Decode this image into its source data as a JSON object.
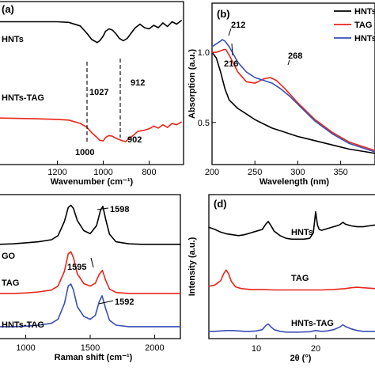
{
  "chart_data": [
    {
      "panel": "a",
      "type": "line",
      "panel_label": "(a)",
      "xlabel": "Wavenumber (cm⁻¹)",
      "xlim": [
        1450,
        650
      ],
      "xticks": [
        1200,
        1000,
        800
      ],
      "series": [
        {
          "name": "HNTs",
          "color": "#000000",
          "x": [
            1450,
            1300,
            1200,
            1150,
            1100,
            1070,
            1050,
            1035,
            1027,
            1015,
            1000,
            990,
            975,
            960,
            945,
            930,
            912,
            895,
            880,
            860,
            840,
            820,
            800,
            780,
            760,
            740,
            720,
            700,
            680,
            660
          ],
          "y": [
            0.9,
            0.9,
            0.9,
            0.89,
            0.83,
            0.7,
            0.6,
            0.57,
            0.55,
            0.58,
            0.66,
            0.74,
            0.78,
            0.76,
            0.7,
            0.62,
            0.58,
            0.62,
            0.7,
            0.8,
            0.86,
            0.8,
            0.78,
            0.84,
            0.8,
            0.88,
            0.82,
            0.9,
            0.86,
            0.92
          ]
        },
        {
          "name": "HNTs-TAG",
          "color": "#e8261c",
          "x": [
            1450,
            1300,
            1200,
            1150,
            1100,
            1070,
            1050,
            1030,
            1015,
            1000,
            990,
            975,
            960,
            945,
            930,
            915,
            902,
            890,
            870,
            850,
            820,
            800,
            780,
            760,
            740,
            720,
            700,
            680,
            660
          ],
          "y": [
            0.48,
            0.47,
            0.46,
            0.45,
            0.4,
            0.34,
            0.26,
            0.2,
            0.15,
            0.14,
            0.19,
            0.22,
            0.21,
            0.18,
            0.16,
            0.14,
            0.13,
            0.17,
            0.22,
            0.28,
            0.3,
            0.32,
            0.36,
            0.33,
            0.38,
            0.34,
            0.4,
            0.38,
            0.42
          ]
        }
      ],
      "annotations": [
        "HNTs",
        "HNTs-TAG",
        "1027",
        "912",
        "1000",
        "902"
      ]
    },
    {
      "panel": "b",
      "type": "line",
      "panel_label": "(b)",
      "xlabel": "Wavelength (nm)",
      "ylabel": "Absorption (a.u.)",
      "xlim": [
        200,
        390
      ],
      "ylim": [
        0.2,
        1.35
      ],
      "xticks": [
        200,
        250,
        300,
        350
      ],
      "yticks": [
        0.5,
        1.0
      ],
      "legend_position": "top-right",
      "series": [
        {
          "name": "HNTs",
          "color": "#000000",
          "x": [
            200,
            205,
            210,
            215,
            220,
            230,
            240,
            250,
            260,
            270,
            280,
            290,
            300,
            320,
            340,
            360,
            380,
            390
          ],
          "y": [
            1.0,
            0.96,
            0.86,
            0.74,
            0.66,
            0.6,
            0.56,
            0.52,
            0.49,
            0.46,
            0.44,
            0.42,
            0.4,
            0.37,
            0.34,
            0.31,
            0.29,
            0.28
          ]
        },
        {
          "name": "TAG",
          "color": "#e8261c",
          "x": [
            200,
            205,
            210,
            214,
            216,
            220,
            230,
            240,
            250,
            260,
            268,
            275,
            285,
            300,
            320,
            340,
            360,
            380,
            390
          ],
          "y": [
            1.0,
            1.0,
            1.01,
            1.02,
            1.02,
            0.98,
            0.86,
            0.79,
            0.78,
            0.81,
            0.82,
            0.8,
            0.74,
            0.64,
            0.52,
            0.43,
            0.36,
            0.32,
            0.3
          ]
        },
        {
          "name": "HNTs-TAG",
          "color": "#3a4fb5",
          "x": [
            200,
            205,
            210,
            212,
            215,
            220,
            230,
            240,
            250,
            260,
            270,
            280,
            290,
            300,
            320,
            340,
            360,
            380,
            390
          ],
          "y": [
            1.04,
            1.06,
            1.08,
            1.09,
            1.08,
            1.04,
            0.93,
            0.86,
            0.82,
            0.8,
            0.78,
            0.74,
            0.69,
            0.63,
            0.51,
            0.42,
            0.35,
            0.31,
            0.29
          ]
        }
      ],
      "annotations": [
        "212",
        "216",
        "268"
      ]
    },
    {
      "panel": "c",
      "type": "line",
      "xlabel": "Raman shift (cm⁻¹)",
      "xlim": [
        800,
        2200
      ],
      "xticks": [
        1000,
        1500,
        2000
      ],
      "series": [
        {
          "name": "GO",
          "color": "#000000",
          "x": [
            800,
            900,
            1000,
            1100,
            1200,
            1250,
            1300,
            1330,
            1350,
            1370,
            1400,
            1450,
            1500,
            1550,
            1580,
            1598,
            1620,
            1650,
            1700,
            1800,
            1900,
            2000,
            2100,
            2200
          ],
          "y": [
            0.05,
            0.06,
            0.08,
            0.1,
            0.14,
            0.22,
            0.5,
            0.78,
            0.82,
            0.76,
            0.52,
            0.32,
            0.26,
            0.42,
            0.72,
            0.8,
            0.55,
            0.25,
            0.1,
            0.06,
            0.05,
            0.05,
            0.05,
            0.05
          ]
        },
        {
          "name": "TAG",
          "color": "#e8261c",
          "x": [
            800,
            900,
            1000,
            1100,
            1200,
            1250,
            1300,
            1330,
            1350,
            1370,
            1400,
            1450,
            1500,
            1540,
            1570,
            1595,
            1620,
            1650,
            1700,
            1800,
            1900,
            2000,
            2100,
            2200
          ],
          "y": [
            0.05,
            0.05,
            0.06,
            0.08,
            0.12,
            0.2,
            0.5,
            0.86,
            0.9,
            0.78,
            0.45,
            0.25,
            0.2,
            0.26,
            0.44,
            0.52,
            0.32,
            0.14,
            0.07,
            0.05,
            0.05,
            0.05,
            0.05,
            0.05
          ]
        },
        {
          "name": "HNTs-TAG",
          "color": "#3a4fb5",
          "x": [
            800,
            900,
            1000,
            1100,
            1200,
            1250,
            1300,
            1330,
            1350,
            1370,
            1400,
            1450,
            1500,
            1540,
            1570,
            1592,
            1620,
            1650,
            1700,
            1800,
            1900,
            2000,
            2100,
            2200
          ],
          "y": [
            0.05,
            0.05,
            0.06,
            0.08,
            0.12,
            0.2,
            0.52,
            0.88,
            0.92,
            0.8,
            0.46,
            0.26,
            0.2,
            0.28,
            0.56,
            0.68,
            0.42,
            0.18,
            0.08,
            0.05,
            0.05,
            0.05,
            0.05,
            0.05
          ]
        }
      ],
      "annotations": [
        "GO",
        "TAG",
        "HNTs-TAG",
        "1598",
        "1595",
        "1592"
      ]
    },
    {
      "panel": "d",
      "type": "line",
      "panel_label": "(d)",
      "xlabel": "2θ (°)",
      "ylabel": "Intensity (a.u.)",
      "xlim": [
        2,
        30
      ],
      "xticks": [
        10,
        20
      ],
      "series": [
        {
          "name": "HNTs",
          "color": "#000000",
          "x": [
            2,
            3,
            4,
            5,
            6,
            7,
            8,
            9,
            10,
            11,
            11.6,
            12,
            12.4,
            13,
            14,
            15,
            16,
            17,
            18,
            19,
            19.6,
            20,
            20.3,
            20.6,
            21,
            22,
            23,
            24,
            24.6,
            25,
            26,
            27,
            28,
            29,
            30
          ],
          "y": [
            0.55,
            0.5,
            0.44,
            0.4,
            0.38,
            0.36,
            0.38,
            0.42,
            0.46,
            0.5,
            0.62,
            0.68,
            0.6,
            0.46,
            0.36,
            0.3,
            0.28,
            0.28,
            0.28,
            0.3,
            0.42,
            0.9,
            0.6,
            0.5,
            0.48,
            0.52,
            0.56,
            0.6,
            0.66,
            0.62,
            0.58,
            0.56,
            0.56,
            0.58,
            0.6
          ]
        },
        {
          "name": "TAG",
          "color": "#e8261c",
          "x": [
            2,
            3,
            4,
            4.5,
            4.9,
            5.3,
            5.8,
            6.5,
            7.5,
            9,
            11,
            13,
            15,
            17,
            19,
            21,
            23,
            25,
            26,
            27,
            28,
            29,
            30
          ],
          "y": [
            0.25,
            0.28,
            0.38,
            0.54,
            0.62,
            0.54,
            0.36,
            0.24,
            0.2,
            0.18,
            0.18,
            0.17,
            0.17,
            0.17,
            0.17,
            0.17,
            0.18,
            0.2,
            0.22,
            0.23,
            0.22,
            0.21,
            0.2
          ]
        },
        {
          "name": "HNTs-TAG",
          "color": "#3a4fb5",
          "x": [
            2,
            3,
            4,
            5,
            6,
            7,
            8,
            9,
            10,
            11,
            11.6,
            12,
            12.4,
            13,
            14,
            15,
            17,
            19,
            20,
            21,
            22,
            23,
            24,
            24.6,
            25,
            26,
            27,
            28,
            29,
            30
          ],
          "y": [
            0.1,
            0.1,
            0.11,
            0.12,
            0.12,
            0.11,
            0.1,
            0.1,
            0.11,
            0.14,
            0.24,
            0.28,
            0.22,
            0.14,
            0.1,
            0.08,
            0.08,
            0.09,
            0.12,
            0.1,
            0.11,
            0.14,
            0.2,
            0.26,
            0.22,
            0.16,
            0.12,
            0.1,
            0.1,
            0.1
          ]
        }
      ],
      "annotations": [
        "HNTs",
        "TAG",
        "HNTs-TAG"
      ]
    }
  ]
}
